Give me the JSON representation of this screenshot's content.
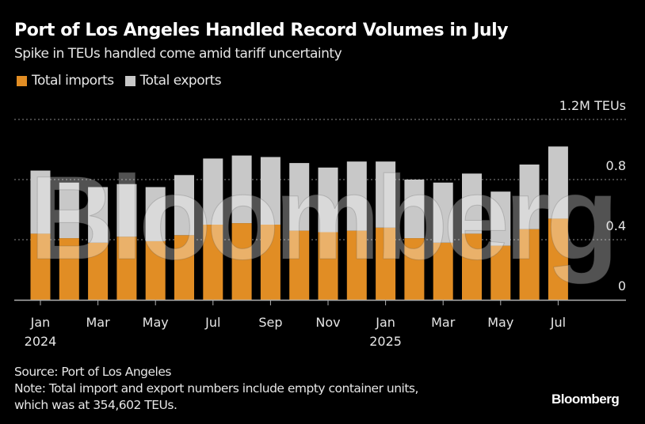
{
  "header": {
    "title": "Port of Los Angeles Handled Record Volumes in July",
    "subtitle": "Spike in TEUs handled come amid tariff uncertainty"
  },
  "legend": [
    {
      "label": "Total imports",
      "color": "#E18D24"
    },
    {
      "label": "Total exports",
      "color": "#C8C8C8"
    }
  ],
  "footer": {
    "source": "Source: Port of Los Angeles",
    "note_line1": "Note: Total import and export numbers include empty container units,",
    "note_line2": "which was at 354,602 TEUs.",
    "brand": "Bloomberg"
  },
  "watermark": "Bloomberg",
  "chart_data": {
    "type": "bar",
    "stacked": true,
    "title": "Port of Los Angeles Handled Record Volumes in July",
    "subtitle": "Spike in TEUs handled come amid tariff uncertainty",
    "xlabel": "",
    "ylabel": "M TEUs",
    "ylim": [
      0,
      1.2
    ],
    "yticks": [
      {
        "value": 0,
        "label": "0"
      },
      {
        "value": 0.4,
        "label": "0.4"
      },
      {
        "value": 0.8,
        "label": "0.8"
      },
      {
        "value": 1.2,
        "label": "1.2M TEUs"
      }
    ],
    "grid": true,
    "legend_position": "top-left",
    "categories": [
      "Jan 2024",
      "Feb 2024",
      "Mar 2024",
      "Apr 2024",
      "May 2024",
      "Jun 2024",
      "Jul 2024",
      "Aug 2024",
      "Sep 2024",
      "Oct 2024",
      "Nov 2024",
      "Dec 2024",
      "Jan 2025",
      "Feb 2025",
      "Mar 2025",
      "Apr 2025",
      "May 2025",
      "Jun 2025",
      "Jul 2025"
    ],
    "xtick_labels": [
      {
        "index": 0,
        "month": "Jan",
        "year": "2024"
      },
      {
        "index": 2,
        "month": "Mar",
        "year": ""
      },
      {
        "index": 4,
        "month": "May",
        "year": ""
      },
      {
        "index": 6,
        "month": "Jul",
        "year": ""
      },
      {
        "index": 8,
        "month": "Sep",
        "year": ""
      },
      {
        "index": 10,
        "month": "Nov",
        "year": ""
      },
      {
        "index": 12,
        "month": "Jan",
        "year": "2025"
      },
      {
        "index": 14,
        "month": "Mar",
        "year": ""
      },
      {
        "index": 16,
        "month": "May",
        "year": ""
      },
      {
        "index": 18,
        "month": "Jul",
        "year": ""
      }
    ],
    "series": [
      {
        "name": "Total imports",
        "color": "#E18D24",
        "values": [
          0.44,
          0.41,
          0.38,
          0.42,
          0.39,
          0.43,
          0.5,
          0.51,
          0.5,
          0.46,
          0.45,
          0.46,
          0.48,
          0.41,
          0.38,
          0.44,
          0.36,
          0.47,
          0.54
        ]
      },
      {
        "name": "Total exports",
        "color": "#C8C8C8",
        "values": [
          0.42,
          0.37,
          0.37,
          0.35,
          0.36,
          0.4,
          0.44,
          0.45,
          0.45,
          0.45,
          0.43,
          0.46,
          0.44,
          0.39,
          0.4,
          0.4,
          0.36,
          0.43,
          0.48
        ]
      }
    ]
  }
}
